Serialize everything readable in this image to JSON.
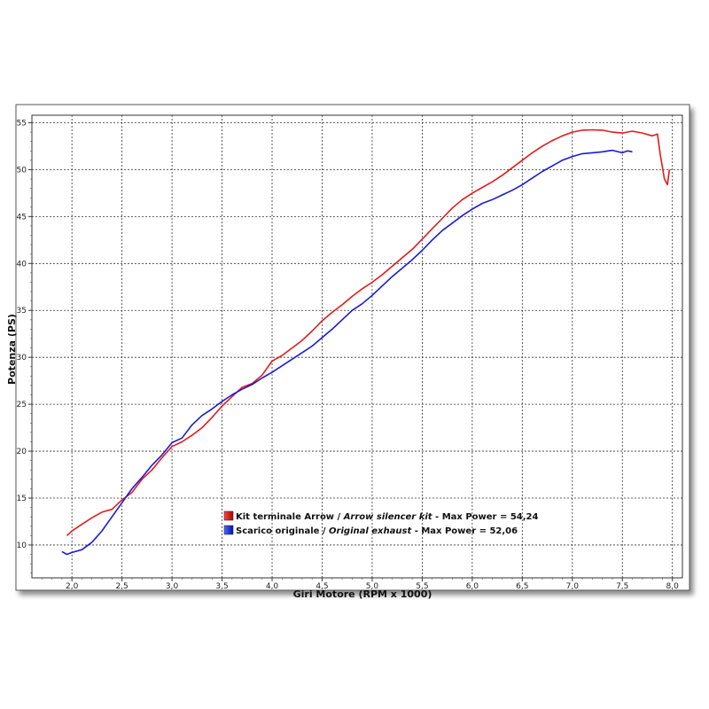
{
  "chart_data": {
    "type": "line",
    "xlabel": "Giri Motore (RPM x 1000)",
    "ylabel": "Potenza (PS)",
    "xlim": [
      1.6,
      8.1
    ],
    "ylim": [
      6.5,
      55.8
    ],
    "x_ticks": [
      "2,0",
      "2,5",
      "3,0",
      "3,5",
      "4,0",
      "4,5",
      "5,0",
      "5,5",
      "6,0",
      "6,5",
      "7,0",
      "7,5",
      "8,0"
    ],
    "y_ticks": [
      "10",
      "15",
      "20",
      "25",
      "30",
      "35",
      "40",
      "45",
      "50",
      "55"
    ],
    "grid": true,
    "legend_placement": "bottom-left inside plot",
    "series": [
      {
        "name": "Kit terminale Arrow",
        "name_italic": "Arrow silencer kit",
        "suffix": " - Max Power = 54,24",
        "color": "#e41a1c",
        "points": [
          [
            1.95,
            11.0
          ],
          [
            2.0,
            11.5
          ],
          [
            2.1,
            12.2
          ],
          [
            2.2,
            12.9
          ],
          [
            2.3,
            13.5
          ],
          [
            2.4,
            13.8
          ],
          [
            2.5,
            14.8
          ],
          [
            2.6,
            15.6
          ],
          [
            2.7,
            17.0
          ],
          [
            2.8,
            18.0
          ],
          [
            2.9,
            19.3
          ],
          [
            3.0,
            20.5
          ],
          [
            3.1,
            21.0
          ],
          [
            3.2,
            21.7
          ],
          [
            3.3,
            22.5
          ],
          [
            3.4,
            23.6
          ],
          [
            3.5,
            24.8
          ],
          [
            3.6,
            25.8
          ],
          [
            3.7,
            26.8
          ],
          [
            3.8,
            27.2
          ],
          [
            3.9,
            28.1
          ],
          [
            4.0,
            29.6
          ],
          [
            4.1,
            30.2
          ],
          [
            4.2,
            31.0
          ],
          [
            4.3,
            31.8
          ],
          [
            4.4,
            32.8
          ],
          [
            4.5,
            33.9
          ],
          [
            4.6,
            34.8
          ],
          [
            4.7,
            35.6
          ],
          [
            4.8,
            36.5
          ],
          [
            4.9,
            37.3
          ],
          [
            5.0,
            38.0
          ],
          [
            5.1,
            38.8
          ],
          [
            5.2,
            39.7
          ],
          [
            5.3,
            40.6
          ],
          [
            5.4,
            41.5
          ],
          [
            5.5,
            42.6
          ],
          [
            5.6,
            43.7
          ],
          [
            5.7,
            44.8
          ],
          [
            5.8,
            45.9
          ],
          [
            5.9,
            46.8
          ],
          [
            6.0,
            47.5
          ],
          [
            6.1,
            48.1
          ],
          [
            6.2,
            48.7
          ],
          [
            6.3,
            49.4
          ],
          [
            6.4,
            50.2
          ],
          [
            6.5,
            51.0
          ],
          [
            6.6,
            51.8
          ],
          [
            6.7,
            52.5
          ],
          [
            6.8,
            53.1
          ],
          [
            6.9,
            53.6
          ],
          [
            7.0,
            54.0
          ],
          [
            7.1,
            54.2
          ],
          [
            7.2,
            54.24
          ],
          [
            7.3,
            54.2
          ],
          [
            7.4,
            54.0
          ],
          [
            7.5,
            53.9
          ],
          [
            7.6,
            54.1
          ],
          [
            7.7,
            53.9
          ],
          [
            7.8,
            53.6
          ],
          [
            7.85,
            53.8
          ],
          [
            7.88,
            51.5
          ],
          [
            7.92,
            49.0
          ],
          [
            7.95,
            48.4
          ],
          [
            7.97,
            50.0
          ]
        ]
      },
      {
        "name": "Scarico originale",
        "name_italic": "Original exhaust",
        "suffix": " - Max Power = 52,06",
        "color": "#1b1bd6",
        "points": [
          [
            1.9,
            9.3
          ],
          [
            1.95,
            9.0
          ],
          [
            2.0,
            9.2
          ],
          [
            2.1,
            9.5
          ],
          [
            2.2,
            10.3
          ],
          [
            2.3,
            11.5
          ],
          [
            2.4,
            13.0
          ],
          [
            2.5,
            14.5
          ],
          [
            2.6,
            16.0
          ],
          [
            2.7,
            17.2
          ],
          [
            2.8,
            18.5
          ],
          [
            2.9,
            19.6
          ],
          [
            3.0,
            20.9
          ],
          [
            3.1,
            21.4
          ],
          [
            3.2,
            22.8
          ],
          [
            3.3,
            23.8
          ],
          [
            3.4,
            24.5
          ],
          [
            3.5,
            25.3
          ],
          [
            3.6,
            26.0
          ],
          [
            3.7,
            26.6
          ],
          [
            3.8,
            27.1
          ],
          [
            3.9,
            27.8
          ],
          [
            4.0,
            28.4
          ],
          [
            4.1,
            29.1
          ],
          [
            4.2,
            29.8
          ],
          [
            4.3,
            30.5
          ],
          [
            4.4,
            31.2
          ],
          [
            4.5,
            32.1
          ],
          [
            4.6,
            33.0
          ],
          [
            4.7,
            34.0
          ],
          [
            4.8,
            35.0
          ],
          [
            4.9,
            35.7
          ],
          [
            5.0,
            36.6
          ],
          [
            5.1,
            37.6
          ],
          [
            5.2,
            38.6
          ],
          [
            5.3,
            39.5
          ],
          [
            5.4,
            40.4
          ],
          [
            5.5,
            41.4
          ],
          [
            5.6,
            42.5
          ],
          [
            5.7,
            43.5
          ],
          [
            5.8,
            44.3
          ],
          [
            5.9,
            45.1
          ],
          [
            6.0,
            45.8
          ],
          [
            6.1,
            46.4
          ],
          [
            6.2,
            46.8
          ],
          [
            6.3,
            47.3
          ],
          [
            6.4,
            47.8
          ],
          [
            6.5,
            48.4
          ],
          [
            6.6,
            49.1
          ],
          [
            6.7,
            49.8
          ],
          [
            6.8,
            50.4
          ],
          [
            6.9,
            51.0
          ],
          [
            7.0,
            51.4
          ],
          [
            7.1,
            51.7
          ],
          [
            7.2,
            51.8
          ],
          [
            7.3,
            51.9
          ],
          [
            7.4,
            52.06
          ],
          [
            7.5,
            51.8
          ],
          [
            7.55,
            52.0
          ],
          [
            7.6,
            51.9
          ]
        ]
      }
    ]
  }
}
